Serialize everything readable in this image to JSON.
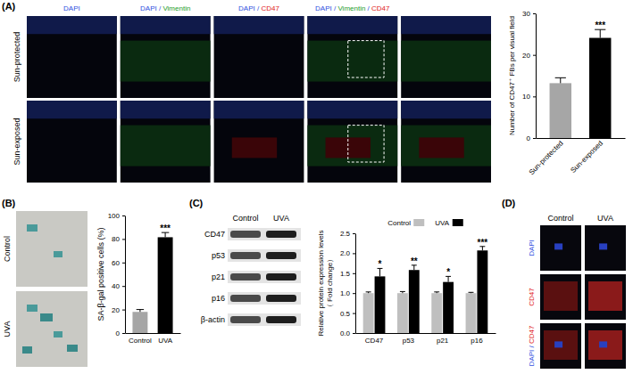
{
  "chart_data": [
    {
      "type": "bar",
      "categories": [
        "Sun-protected",
        "Sun-exposed"
      ],
      "values": [
        13.2,
        24.1
      ],
      "errors": [
        1.3,
        2.0
      ],
      "colors": [
        "#a6a6a6",
        "#000000"
      ],
      "y_label": "Number of CD47⁺ FBs per visual field",
      "ylim": [
        0,
        30
      ],
      "yticks": [
        0,
        10,
        20,
        30
      ],
      "annotations": [
        {
          "category": "Sun-exposed",
          "text": "***"
        }
      ]
    },
    {
      "type": "bar",
      "categories": [
        "Control",
        "UVA"
      ],
      "values": [
        18,
        81.5
      ],
      "errors": [
        2,
        4
      ],
      "colors": [
        "#a6a6a6",
        "#000000"
      ],
      "y_label": "SA-β-gal positive cells (%)",
      "ylim": [
        0,
        100
      ],
      "yticks": [
        0,
        20,
        40,
        60,
        80,
        100
      ],
      "annotations": [
        {
          "category": "UVA",
          "text": "***"
        }
      ]
    },
    {
      "type": "bar",
      "categories": [
        "CD47",
        "p53",
        "p21",
        "p16"
      ],
      "series": [
        {
          "name": "Control",
          "color": "#bfbfbf",
          "values": [
            1,
            1,
            1,
            1
          ],
          "errors": [
            0.03,
            0.04,
            0.03,
            0.02
          ]
        },
        {
          "name": "UVA",
          "color": "#000000",
          "values": [
            1.42,
            1.58,
            1.28,
            2.07
          ],
          "errors": [
            0.2,
            0.12,
            0.14,
            0.1
          ]
        }
      ],
      "y_label": [
        "Relative protein expression levels",
        "（ Fold change）"
      ],
      "ylim": [
        0,
        2.5
      ],
      "yticks": [
        {
          "value": 0,
          "label": "0.0"
        },
        {
          "value": 0.5,
          "label": "0.5"
        },
        {
          "value": 1,
          "label": "1.0"
        },
        {
          "value": 1.5,
          "label": "1.5"
        },
        {
          "value": 2,
          "label": "2.0"
        },
        {
          "value": 2.5,
          "label": "2.5"
        }
      ],
      "legend": "top",
      "annotations": [
        {
          "category": "CD47",
          "text": "*"
        },
        {
          "category": "p53",
          "text": "**"
        },
        {
          "category": "p21",
          "text": "*"
        },
        {
          "category": "p16",
          "text": "***"
        }
      ]
    }
  ],
  "figure": {
    "panel_labels": [
      "(A)",
      "(B)",
      "(C)",
      "(D)"
    ],
    "A": {
      "columns": [
        [
          {
            "text": "DAPI",
            "color": "#2f4fe0"
          }
        ],
        [
          {
            "text": "DAPI",
            "color": "#2f4fe0"
          },
          {
            "text": " / ",
            "color": "#2f4fe0"
          },
          {
            "text": "Vimentin",
            "color": "#1f9e2c"
          }
        ],
        [
          {
            "text": "DAPI",
            "color": "#2f4fe0"
          },
          {
            "text": " / ",
            "color": "#2f4fe0"
          },
          {
            "text": "CD47",
            "color": "#e01818"
          }
        ],
        [
          {
            "text": "DAPI",
            "color": "#2f4fe0"
          },
          {
            "text": " / ",
            "color": "#2f4fe0"
          },
          {
            "text": "Vimentin",
            "color": "#1f9e2c"
          },
          {
            "text": " / ",
            "color": "#2f4fe0"
          },
          {
            "text": "CD47",
            "color": "#e01818"
          }
        ]
      ],
      "rows": [
        "Sun-protected",
        "Sun-exposed"
      ]
    },
    "B": {
      "rows": [
        "Control",
        "UVA"
      ]
    },
    "C": {
      "columns": [
        "Control",
        "UVA"
      ],
      "rows": [
        "CD47",
        "p53",
        "p21",
        "p16",
        "β-actin"
      ]
    },
    "D": {
      "columns": [
        "Control",
        "UVA"
      ],
      "rows": [
        [
          {
            "text": "DAPI",
            "color": "#2f4fe0"
          }
        ],
        [
          {
            "text": "CD47",
            "color": "#e01818"
          }
        ],
        [
          {
            "text": "DAPI",
            "color": "#2f4fe0"
          },
          {
            "text": " / ",
            "color": "#2f4fe0"
          },
          {
            "text": "CD47",
            "color": "#e01818"
          }
        ]
      ]
    }
  }
}
